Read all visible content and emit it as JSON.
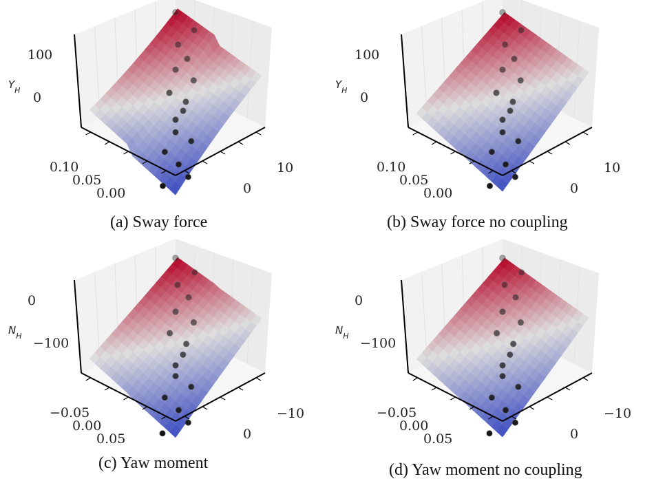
{
  "chart_data": [
    {
      "type": "surface3d",
      "caption": "(a) Sway force",
      "zlabel": "Y_H",
      "zticks": [
        "100",
        "0"
      ],
      "xticks": [
        "0.10",
        "0.05",
        "0.00"
      ],
      "yticks": [
        "10",
        "0"
      ],
      "curvature": 0.35,
      "scatter_levels": [
        1.0,
        0.9,
        0.82,
        0.74,
        0.68,
        0.62,
        0.55,
        0.5,
        0.45,
        0.4,
        0.33,
        0.28,
        0.22,
        0.15,
        0.08,
        0.03
      ]
    },
    {
      "type": "surface3d",
      "caption": "(b) Sway force no coupling",
      "zlabel": "Y_H",
      "zticks": [
        "100",
        "0"
      ],
      "xticks": [
        "0.10",
        "0.05",
        "0.00"
      ],
      "yticks": [
        "10",
        "0"
      ],
      "curvature": 0.0,
      "scatter_levels": [
        1.0,
        0.9,
        0.82,
        0.74,
        0.68,
        0.62,
        0.55,
        0.5,
        0.45,
        0.4,
        0.33,
        0.28,
        0.22,
        0.15,
        0.08,
        0.03
      ]
    },
    {
      "type": "surface3d",
      "caption": "(c) Yaw moment",
      "zlabel": "N_H",
      "zticks": [
        "0",
        "−100"
      ],
      "xticks": [
        "−0.05",
        "0.00",
        "0.05"
      ],
      "yticks": [
        "−10",
        "0"
      ],
      "curvature": 0.05,
      "scatter_levels": [
        1.0,
        0.92,
        0.85,
        0.78,
        0.7,
        0.64,
        0.58,
        0.52,
        0.46,
        0.4,
        0.34,
        0.28,
        0.22,
        0.15,
        0.08,
        0.02
      ]
    },
    {
      "type": "surface3d",
      "caption": "(d) Yaw moment no coupling",
      "zlabel": "N_H",
      "zticks": [
        "0",
        "−100"
      ],
      "xticks": [
        "−0.05",
        "0.00",
        "0.05"
      ],
      "yticks": [
        "−10",
        "0"
      ],
      "curvature": 0.0,
      "scatter_levels": [
        1.0,
        0.92,
        0.85,
        0.78,
        0.7,
        0.64,
        0.58,
        0.52,
        0.46,
        0.4,
        0.34,
        0.28,
        0.22,
        0.15,
        0.08,
        0.02
      ]
    }
  ],
  "colors": {
    "low": "#3b4cc0",
    "mid": "#dddcdc",
    "high": "#b40426",
    "pane": "#f2f2f2",
    "grid": "#e2e2e2"
  }
}
